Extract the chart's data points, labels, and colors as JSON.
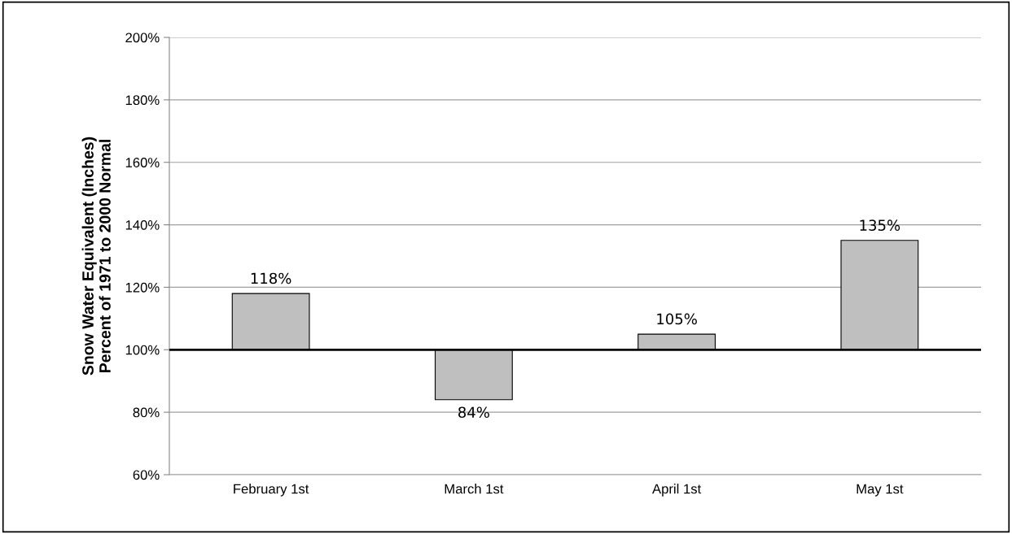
{
  "chart_data": {
    "type": "bar",
    "ylabel": "Snow Water Equivalent (Inches)\nPercent of 1971 to 2000 Normal",
    "categories": [
      "February 1st",
      "March 1st",
      "April 1st",
      "May 1st"
    ],
    "base": [
      100,
      100,
      100,
      100
    ],
    "values": [
      18,
      -16,
      5,
      35
    ],
    "value_labels": [
      "118%",
      "84%",
      "105%",
      "135%"
    ],
    "color": "#bfbfbf",
    "ylim": [
      60,
      200
    ],
    "yticks": [
      {
        "value": 60,
        "label": "60%"
      },
      {
        "value": 80,
        "label": "80%"
      },
      {
        "value": 100,
        "label": "100%"
      },
      {
        "value": 120,
        "label": "120%"
      },
      {
        "value": 140,
        "label": "140%"
      },
      {
        "value": 160,
        "label": "160%"
      },
      {
        "value": 180,
        "label": "180%"
      },
      {
        "value": 200,
        "label": "200%"
      }
    ],
    "ref_lines": [
      {
        "axis": "y",
        "value": 100,
        "color": "#000000"
      }
    ],
    "grid": "y",
    "legend": false
  }
}
